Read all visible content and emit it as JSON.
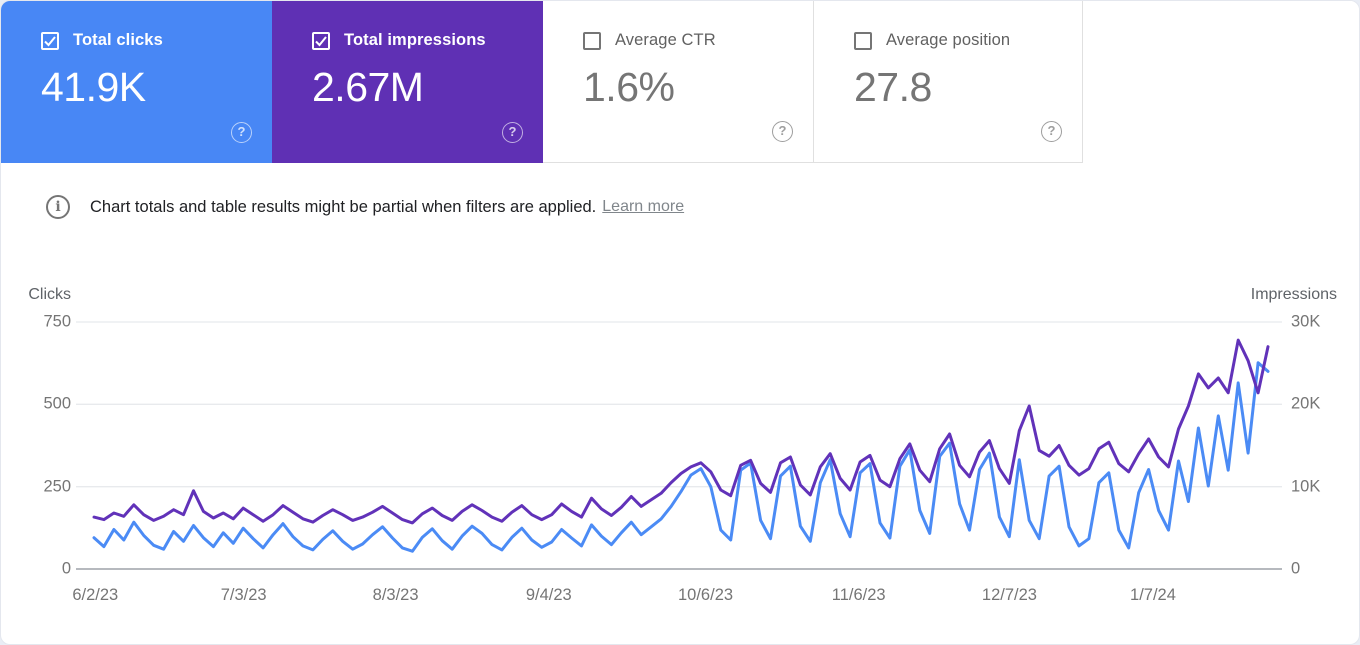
{
  "cards": [
    {
      "label": "Total clicks",
      "value": "41.9K",
      "checked": true,
      "bg": "#4887f5",
      "fg": "#ffffff"
    },
    {
      "label": "Total impressions",
      "value": "2.67M",
      "checked": true,
      "bg": "#5f30b4",
      "fg": "#ffffff"
    },
    {
      "label": "Average CTR",
      "value": "1.6%",
      "checked": false,
      "bg": "#ffffff",
      "fg": "#757575"
    },
    {
      "label": "Average position",
      "value": "27.8",
      "checked": false,
      "bg": "#ffffff",
      "fg": "#757575"
    }
  ],
  "notice": {
    "text": "Chart totals and table results might be partial when filters are applied.",
    "link_label": "Learn more"
  },
  "chart_data": {
    "type": "line",
    "title": "",
    "grid": true,
    "left_axis": {
      "label": "Clicks",
      "ylim": [
        0,
        750
      ],
      "ticks": [
        "750",
        "500",
        "250",
        "0"
      ]
    },
    "right_axis": {
      "label": "Impressions",
      "ylim": [
        0,
        30000
      ],
      "ticks": [
        "30K",
        "20K",
        "10K",
        "0"
      ]
    },
    "x_ticks": [
      {
        "label": "6/2/23",
        "pct": 1.6
      },
      {
        "label": "7/3/23",
        "pct": 13.9
      },
      {
        "label": "8/3/23",
        "pct": 26.5
      },
      {
        "label": "9/4/23",
        "pct": 39.2
      },
      {
        "label": "10/6/23",
        "pct": 52.2
      },
      {
        "label": "11/6/23",
        "pct": 64.9
      },
      {
        "label": "12/7/23",
        "pct": 77.4
      },
      {
        "label": "1/7/24",
        "pct": 89.3
      }
    ],
    "series": [
      {
        "name": "Clicks",
        "axis": "left",
        "color": "#4b8bf5",
        "values": [
          95,
          68,
          120,
          88,
          142,
          102,
          72,
          60,
          114,
          84,
          132,
          95,
          68,
          110,
          78,
          124,
          92,
          64,
          104,
          138,
          98,
          70,
          58,
          90,
          116,
          84,
          60,
          76,
          104,
          128,
          94,
          64,
          54,
          96,
          122,
          86,
          60,
          100,
          130,
          108,
          74,
          58,
          96,
          124,
          88,
          66,
          82,
          120,
          94,
          70,
          134,
          100,
          74,
          110,
          142,
          104,
          128,
          152,
          190,
          235,
          285,
          305,
          250,
          118,
          88,
          300,
          322,
          148,
          92,
          282,
          312,
          130,
          84,
          262,
          332,
          168,
          98,
          292,
          320,
          140,
          94,
          312,
          362,
          178,
          108,
          342,
          382,
          198,
          118,
          302,
          352,
          158,
          98,
          332,
          148,
          92,
          282,
          312,
          128,
          70,
          92,
          262,
          292,
          118,
          64,
          232,
          302,
          178,
          118,
          328,
          205,
          428,
          252,
          465,
          300,
          565,
          352,
          626,
          600
        ]
      },
      {
        "name": "Impressions",
        "axis": "right",
        "color": "#6132b9",
        "values": [
          6300,
          6000,
          6800,
          6400,
          7800,
          6600,
          5900,
          6400,
          7200,
          6600,
          9500,
          7000,
          6200,
          6800,
          6100,
          7400,
          6600,
          5800,
          6600,
          7700,
          6900,
          6100,
          5700,
          6500,
          7200,
          6600,
          5900,
          6300,
          6900,
          7600,
          6800,
          6000,
          5600,
          6700,
          7400,
          6500,
          5900,
          7000,
          7800,
          7100,
          6300,
          5800,
          6900,
          7700,
          6600,
          6000,
          6600,
          7900,
          7000,
          6300,
          8600,
          7300,
          6500,
          7500,
          8800,
          7600,
          8400,
          9200,
          10500,
          11600,
          12400,
          12900,
          11800,
          9600,
          8900,
          12600,
          13200,
          10400,
          9300,
          12900,
          13600,
          10200,
          9000,
          12400,
          14000,
          11000,
          9600,
          13000,
          13800,
          10800,
          10000,
          13400,
          15200,
          12000,
          10600,
          14600,
          16400,
          12600,
          11200,
          14200,
          15600,
          12200,
          10400,
          16800,
          19800,
          14400,
          13700,
          15000,
          12600,
          11400,
          12200,
          14600,
          15400,
          12800,
          11800,
          14000,
          15800,
          13600,
          12400,
          17000,
          19800,
          23700,
          22000,
          23200,
          21400,
          27800,
          25300,
          21400,
          27000
        ]
      }
    ],
    "grid_color": "#e8eaed",
    "baseline_color": "#8a8f96"
  }
}
